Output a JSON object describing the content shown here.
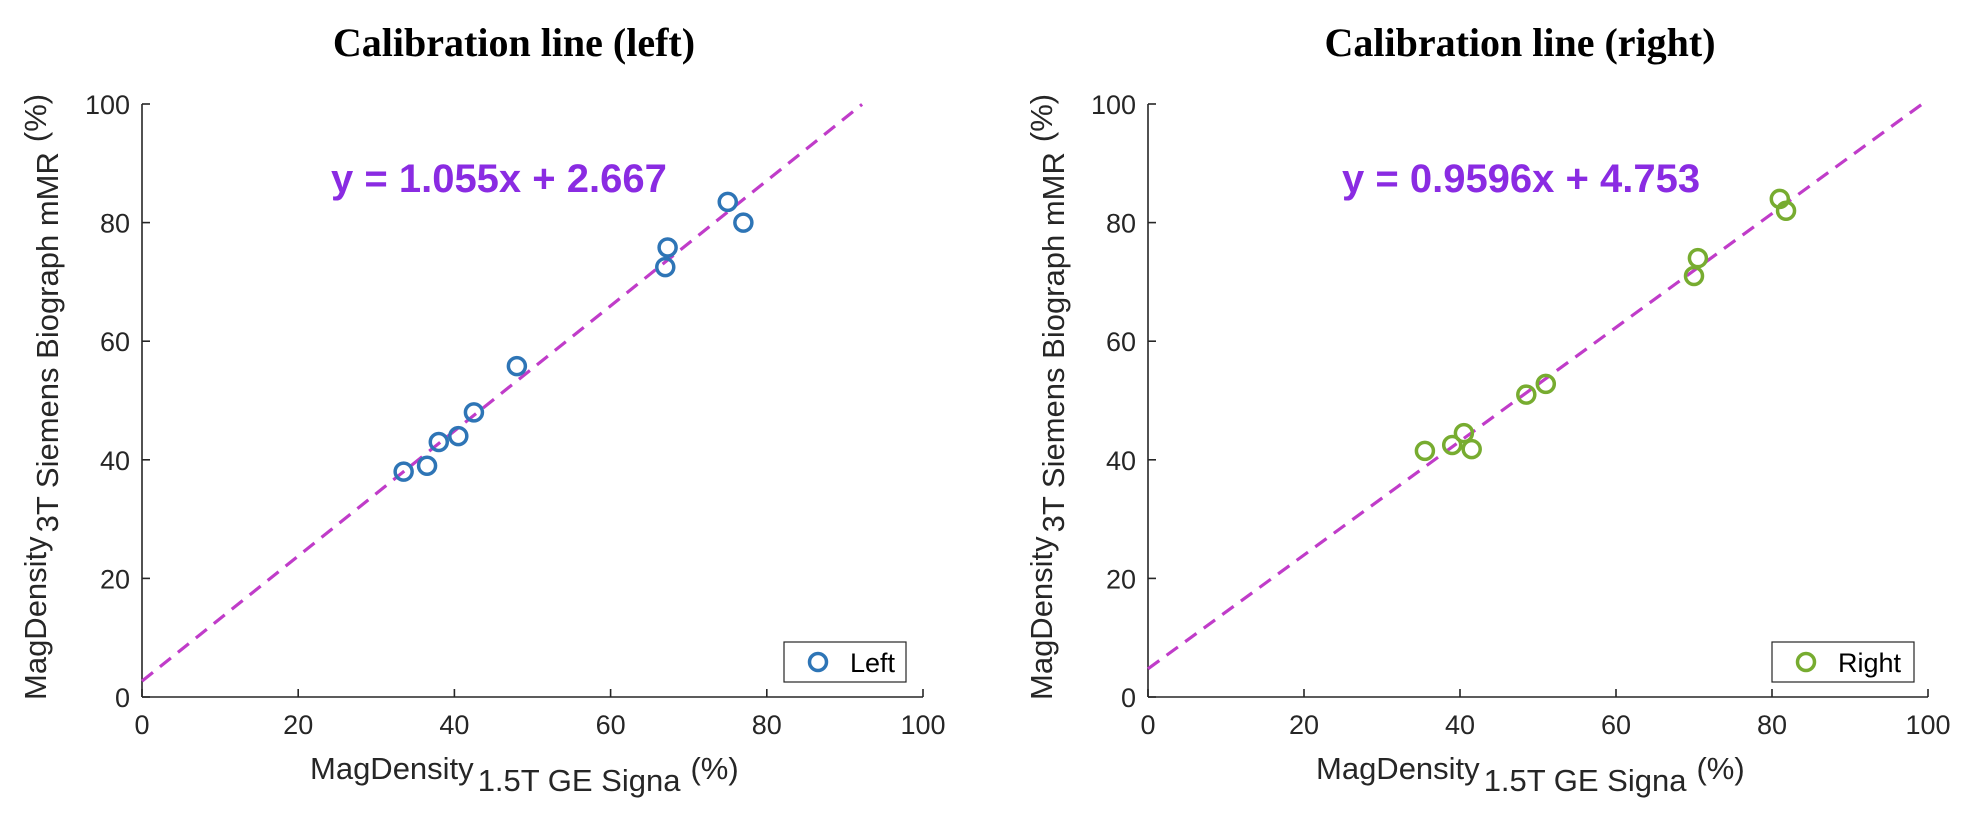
{
  "chart_data": [
    {
      "type": "scatter",
      "title": "Calibration line (left)",
      "xlabel": {
        "main": "MagDensity",
        "sub": "1.5T GE Signa",
        "unit": "(%)"
      },
      "ylabel": {
        "main": "MagDensity",
        "sub": "3T Siemens Biograph mMR",
        "unit": "(%)"
      },
      "xlim": [
        0,
        100
      ],
      "ylim": [
        0,
        100
      ],
      "xticks": [
        "0",
        "20",
        "40",
        "60",
        "80",
        "100"
      ],
      "yticks": [
        "0",
        "20",
        "40",
        "60",
        "80",
        "100"
      ],
      "grid": false,
      "legend_position": "bottom-right",
      "series": [
        {
          "name": "Left",
          "color": "#2e75b6",
          "marker": "open-circle",
          "points": [
            [
              33.5,
              38
            ],
            [
              36.5,
              39
            ],
            [
              38,
              43
            ],
            [
              40.5,
              44
            ],
            [
              42.5,
              48
            ],
            [
              48,
              55.8
            ],
            [
              67,
              72.5
            ],
            [
              67.3,
              75.8
            ],
            [
              75,
              83.5
            ],
            [
              77,
              80
            ]
          ]
        }
      ],
      "fit": {
        "slope": 1.055,
        "intercept": 2.667,
        "x_range": [
          0,
          92.2
        ],
        "color": "#c03cc9",
        "style": "dashed",
        "label": "y = 1.055x + 2.667",
        "label_color": "#8a2be2"
      }
    },
    {
      "type": "scatter",
      "title": "Calibration line (right)",
      "xlabel": {
        "main": "MagDensity",
        "sub": "1.5T GE Signa",
        "unit": "(%)"
      },
      "ylabel": {
        "main": "MagDensity",
        "sub": "3T Siemens Biograph mMR",
        "unit": "(%)"
      },
      "xlim": [
        0,
        100
      ],
      "ylim": [
        0,
        100
      ],
      "xticks": [
        "0",
        "20",
        "40",
        "60",
        "80",
        "100"
      ],
      "yticks": [
        "0",
        "20",
        "40",
        "60",
        "80",
        "100"
      ],
      "grid": false,
      "legend_position": "bottom-right",
      "series": [
        {
          "name": "Right",
          "color": "#77ac30",
          "marker": "open-circle",
          "points": [
            [
              35.5,
              41.5
            ],
            [
              39,
              42.5
            ],
            [
              40.5,
              44.5
            ],
            [
              41.5,
              41.8
            ],
            [
              48.5,
              51
            ],
            [
              51,
              52.8
            ],
            [
              70,
              71
            ],
            [
              70.5,
              74
            ],
            [
              81,
              84
            ],
            [
              81.8,
              82
            ]
          ]
        }
      ],
      "fit": {
        "slope": 0.9596,
        "intercept": 4.753,
        "x_range": [
          0,
          99.3
        ],
        "color": "#c03cc9",
        "style": "dashed",
        "label": "y = 0.9596x + 4.753",
        "label_color": "#8a2be2"
      }
    }
  ]
}
